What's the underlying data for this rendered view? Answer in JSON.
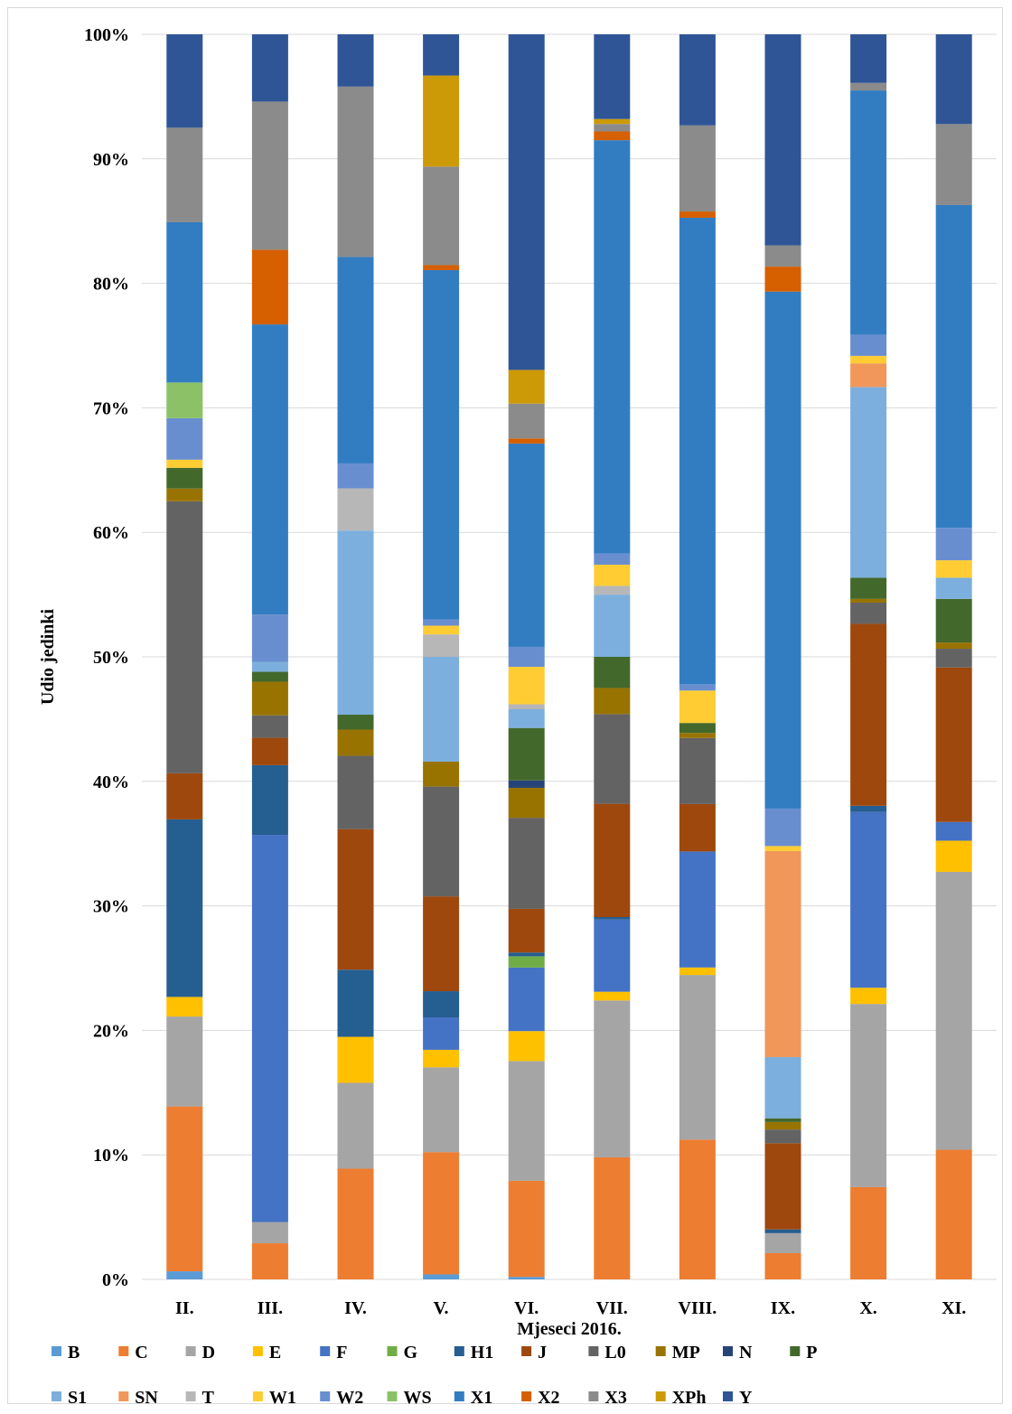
{
  "chart_data": {
    "type": "bar",
    "stacked": "percent",
    "xlabel": "Mjeseci 2016.",
    "ylabel": "Udio jedinki",
    "ylim": [
      0,
      100
    ],
    "yticks": [
      "0%",
      "10%",
      "20%",
      "30%",
      "40%",
      "50%",
      "60%",
      "70%",
      "80%",
      "90%",
      "100%"
    ],
    "grid": true,
    "legend_position": "bottom",
    "categories": [
      "II.",
      "III.",
      "IV.",
      "V.",
      "VI.",
      "VII.",
      "VIII.",
      "IX.",
      "X.",
      "XI."
    ],
    "series": [
      {
        "name": "B",
        "color": "#5B9BD5",
        "values": [
          0.7,
          0,
          0,
          0.4,
          0.2,
          0,
          0,
          0,
          0,
          0
        ]
      },
      {
        "name": "C",
        "color": "#ED7D31",
        "values": [
          14.3,
          2.9,
          8.9,
          9.8,
          7.7,
          9.8,
          11.2,
          2.1,
          7.4,
          10.4
        ]
      },
      {
        "name": "D",
        "color": "#A5A5A5",
        "values": [
          7.8,
          1.7,
          6.9,
          6.8,
          9.6,
          12.6,
          13.2,
          1.6,
          14.7,
          22.3
        ]
      },
      {
        "name": "E",
        "color": "#FFC000",
        "values": [
          1.7,
          0,
          3.7,
          1.4,
          2.4,
          0.7,
          0.6,
          0,
          1.3,
          2.5
        ]
      },
      {
        "name": "F",
        "color": "#4472C4",
        "values": [
          0,
          31.1,
          0,
          2.6,
          5.1,
          5.8,
          9.3,
          0,
          14.1,
          1.5
        ]
      },
      {
        "name": "G",
        "color": "#70AD47",
        "values": [
          0,
          0,
          0,
          0,
          0.9,
          0,
          0,
          0,
          0,
          0
        ]
      },
      {
        "name": "H1",
        "color": "#255E91",
        "values": [
          15.4,
          5.6,
          5.4,
          2.1,
          0.3,
          0.2,
          0,
          0.3,
          0.5,
          0
        ]
      },
      {
        "name": "J",
        "color": "#9E480E",
        "values": [
          4.0,
          2.2,
          11.3,
          7.6,
          3.5,
          9.1,
          3.8,
          6.9,
          14.6,
          12.4
        ]
      },
      {
        "name": "L0",
        "color": "#636363",
        "values": [
          23.6,
          1.8,
          5.9,
          8.8,
          7.3,
          7.2,
          5.3,
          1.1,
          1.7,
          1.5
        ]
      },
      {
        "name": "MP",
        "color": "#997300",
        "values": [
          1.1,
          2.7,
          2.1,
          2.0,
          2.4,
          2.1,
          0.4,
          0.6,
          0.3,
          0.5
        ]
      },
      {
        "name": "N",
        "color": "#264478",
        "values": [
          0,
          0,
          0,
          0,
          0.6,
          0,
          0,
          0,
          0,
          0
        ]
      },
      {
        "name": "P",
        "color": "#43682B",
        "values": [
          1.8,
          0.8,
          1.2,
          0,
          4.2,
          2.5,
          0.8,
          0.3,
          1.7,
          3.5
        ]
      },
      {
        "name": "S1",
        "color": "#7CAFDD",
        "values": [
          0,
          0.8,
          14.8,
          8.4,
          1.5,
          5.0,
          0,
          4.9,
          15.3,
          1.7
        ]
      },
      {
        "name": "SN",
        "color": "#F1975A",
        "values": [
          0,
          0,
          0,
          0,
          0,
          0,
          0,
          16.5,
          1.9,
          0
        ]
      },
      {
        "name": "T",
        "color": "#B7B7B7",
        "values": [
          0,
          0,
          3.4,
          1.8,
          0.4,
          0.7,
          0,
          0,
          0,
          0
        ]
      },
      {
        "name": "W1",
        "color": "#FFCD33",
        "values": [
          0.7,
          0,
          0,
          0.7,
          3.0,
          1.7,
          2.6,
          0.4,
          0.6,
          1.4
        ]
      },
      {
        "name": "W2",
        "color": "#698ED0",
        "values": [
          3.6,
          3.8,
          2.0,
          0.5,
          1.6,
          0.9,
          0.5,
          3.0,
          1.7,
          2.6
        ]
      },
      {
        "name": "WS",
        "color": "#8CC168",
        "values": [
          3.1,
          0,
          0,
          0,
          0,
          0,
          0,
          0,
          0,
          0
        ]
      },
      {
        "name": "X1",
        "color": "#327DC2",
        "values": [
          13.9,
          23.3,
          16.6,
          28.0,
          16.3,
          33.2,
          37.4,
          41.4,
          19.6,
          25.9
        ]
      },
      {
        "name": "X2",
        "color": "#D65F00",
        "values": [
          0,
          6.0,
          0,
          0.4,
          0.4,
          0.7,
          0.5,
          2.0,
          0,
          0
        ]
      },
      {
        "name": "X3",
        "color": "#8B8B8B",
        "values": [
          8.2,
          11.9,
          13.7,
          7.9,
          2.8,
          0.6,
          6.9,
          1.7,
          0.6,
          6.5
        ]
      },
      {
        "name": "XPh",
        "color": "#CC9A06",
        "values": [
          0,
          0,
          0,
          7.3,
          2.7,
          0.4,
          0,
          0,
          0,
          0
        ]
      },
      {
        "name": "Y",
        "color": "#2F5597",
        "values": [
          8.1,
          5.4,
          4.2,
          3.3,
          26.9,
          6.8,
          7.3,
          16.9,
          3.9,
          7.2
        ]
      }
    ]
  }
}
